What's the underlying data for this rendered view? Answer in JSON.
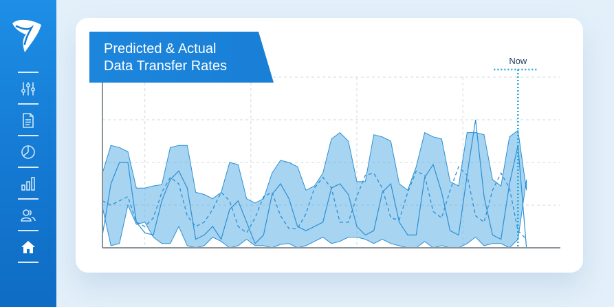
{
  "sidebar": {
    "items": [
      {
        "icon": "sliders-icon"
      },
      {
        "icon": "document-icon"
      },
      {
        "icon": "pie-chart-icon"
      },
      {
        "icon": "bar-chart-icon"
      },
      {
        "icon": "users-icon"
      },
      {
        "icon": "home-icon"
      }
    ]
  },
  "colors": {
    "sidebar": "#1479d2",
    "accent": "#1a7fd6",
    "area_fill": "#5fb0e6",
    "line": "#2a8fd4",
    "now_marker": "#1fa6d6",
    "background": "#e3f0fa"
  },
  "chart_data": {
    "type": "area",
    "title_lines": [
      "Predicted & Actual",
      "Data Transfer Rates"
    ],
    "now_label": "Now",
    "xlabel": "",
    "ylabel": "",
    "x_range": [
      0,
      108
    ],
    "y_range": [
      0,
      4
    ],
    "grid": true,
    "band_upper": [
      [
        0,
        1.75
      ],
      [
        2,
        2.4
      ],
      [
        4,
        2.35
      ],
      [
        6,
        2.25
      ],
      [
        8,
        1.4
      ],
      [
        10,
        1.4
      ],
      [
        12,
        1.45
      ],
      [
        14,
        1.48
      ],
      [
        16,
        2.35
      ],
      [
        18,
        2.4
      ],
      [
        20,
        2.4
      ],
      [
        22,
        1.3
      ],
      [
        24,
        1.25
      ],
      [
        26,
        1.15
      ],
      [
        28,
        1.3
      ],
      [
        30,
        2.0
      ],
      [
        32,
        1.95
      ],
      [
        34,
        1.15
      ],
      [
        36,
        1.05
      ],
      [
        38,
        1.15
      ],
      [
        40,
        1.75
      ],
      [
        42,
        2.05
      ],
      [
        44,
        2.0
      ],
      [
        46,
        1.9
      ],
      [
        48,
        1.35
      ],
      [
        50,
        1.45
      ],
      [
        52,
        1.75
      ],
      [
        54,
        2.55
      ],
      [
        56,
        2.7
      ],
      [
        58,
        2.5
      ],
      [
        60,
        1.55
      ],
      [
        62,
        1.55
      ],
      [
        64,
        2.65
      ],
      [
        66,
        2.6
      ],
      [
        68,
        2.5
      ],
      [
        70,
        1.5
      ],
      [
        72,
        1.35
      ],
      [
        74,
        1.9
      ],
      [
        76,
        2.7
      ],
      [
        78,
        2.6
      ],
      [
        80,
        2.55
      ],
      [
        82,
        1.55
      ],
      [
        84,
        1.45
      ],
      [
        86,
        2.7
      ],
      [
        88,
        2.7
      ],
      [
        90,
        2.65
      ],
      [
        92,
        1.6
      ],
      [
        94,
        1.45
      ],
      [
        96,
        2.6
      ],
      [
        98,
        2.75
      ],
      [
        100,
        1.35
      ]
    ],
    "band_lower": [
      [
        0,
        0.95
      ],
      [
        2,
        0.05
      ],
      [
        4,
        0.1
      ],
      [
        6,
        1.0
      ],
      [
        8,
        0.55
      ],
      [
        10,
        0.6
      ],
      [
        12,
        0.25
      ],
      [
        14,
        0.1
      ],
      [
        16,
        0.1
      ],
      [
        18,
        0.5
      ],
      [
        20,
        0.05
      ],
      [
        22,
        0.0
      ],
      [
        24,
        0.05
      ],
      [
        26,
        0.25
      ],
      [
        28,
        0.15
      ],
      [
        30,
        0.0
      ],
      [
        32,
        0.05
      ],
      [
        34,
        0.2
      ],
      [
        36,
        0.05
      ],
      [
        38,
        0.05
      ],
      [
        40,
        0.0
      ],
      [
        42,
        0.08
      ],
      [
        44,
        0.1
      ],
      [
        46,
        0.0
      ],
      [
        48,
        0.05
      ],
      [
        50,
        0.15
      ],
      [
        52,
        0.25
      ],
      [
        54,
        0.1
      ],
      [
        56,
        0.15
      ],
      [
        58,
        0.25
      ],
      [
        60,
        0.25
      ],
      [
        62,
        0.2
      ],
      [
        64,
        0.1
      ],
      [
        66,
        0.2
      ],
      [
        68,
        0.1
      ],
      [
        70,
        0.05
      ],
      [
        72,
        0.0
      ],
      [
        74,
        0.0
      ],
      [
        76,
        0.15
      ],
      [
        78,
        0.0
      ],
      [
        80,
        0.05
      ],
      [
        82,
        0.0
      ],
      [
        84,
        0.0
      ],
      [
        86,
        0.1
      ],
      [
        88,
        0.25
      ],
      [
        90,
        0.05
      ],
      [
        92,
        0.1
      ],
      [
        94,
        0.1
      ],
      [
        96,
        0.0
      ],
      [
        98,
        0.2
      ],
      [
        100,
        1.6
      ]
    ],
    "actual": [
      [
        0,
        0.3
      ],
      [
        2,
        1.5
      ],
      [
        4,
        2.0
      ],
      [
        6,
        2.0
      ],
      [
        8,
        0.6
      ],
      [
        10,
        0.35
      ],
      [
        12,
        0.3
      ],
      [
        14,
        1.1
      ],
      [
        16,
        1.6
      ],
      [
        18,
        1.8
      ],
      [
        20,
        1.4
      ],
      [
        22,
        0.2
      ],
      [
        24,
        0.3
      ],
      [
        26,
        0.5
      ],
      [
        28,
        0.2
      ],
      [
        30,
        0.9
      ],
      [
        32,
        1.1
      ],
      [
        34,
        0.6
      ],
      [
        36,
        0.1
      ],
      [
        38,
        0.3
      ],
      [
        40,
        1.25
      ],
      [
        42,
        1.5
      ],
      [
        44,
        1.15
      ],
      [
        46,
        0.5
      ],
      [
        48,
        0.4
      ],
      [
        50,
        0.5
      ],
      [
        52,
        0.6
      ],
      [
        54,
        1.4
      ],
      [
        56,
        1.5
      ],
      [
        58,
        1.25
      ],
      [
        60,
        0.5
      ],
      [
        62,
        0.3
      ],
      [
        64,
        0.4
      ],
      [
        66,
        1.3
      ],
      [
        68,
        1.5
      ],
      [
        70,
        0.6
      ],
      [
        72,
        0.3
      ],
      [
        74,
        0.3
      ],
      [
        76,
        1.65
      ],
      [
        78,
        1.95
      ],
      [
        80,
        1.3
      ],
      [
        82,
        0.4
      ],
      [
        84,
        0.3
      ],
      [
        86,
        1.7
      ],
      [
        88,
        3.0
      ],
      [
        90,
        1.2
      ],
      [
        92,
        0.3
      ],
      [
        94,
        0.2
      ],
      [
        96,
        1.5
      ],
      [
        98,
        2.4
      ],
      [
        100,
        0.0
      ]
    ],
    "predicted": [
      [
        0,
        1.1
      ],
      [
        2,
        1.0
      ],
      [
        4,
        1.1
      ],
      [
        6,
        1.2
      ],
      [
        8,
        0.6
      ],
      [
        10,
        0.5
      ],
      [
        12,
        0.7
      ],
      [
        14,
        1.3
      ],
      [
        16,
        1.65
      ],
      [
        18,
        1.5
      ],
      [
        20,
        0.75
      ],
      [
        22,
        0.5
      ],
      [
        24,
        0.6
      ],
      [
        26,
        0.9
      ],
      [
        28,
        1.3
      ],
      [
        30,
        1.1
      ],
      [
        32,
        0.5
      ],
      [
        34,
        0.35
      ],
      [
        36,
        0.7
      ],
      [
        38,
        1.2
      ],
      [
        40,
        1.3
      ],
      [
        42,
        0.75
      ],
      [
        44,
        0.45
      ],
      [
        46,
        0.45
      ],
      [
        48,
        0.8
      ],
      [
        50,
        1.4
      ],
      [
        52,
        1.65
      ],
      [
        54,
        1.4
      ],
      [
        56,
        0.6
      ],
      [
        58,
        0.6
      ],
      [
        60,
        1.2
      ],
      [
        62,
        1.7
      ],
      [
        64,
        1.75
      ],
      [
        66,
        1.4
      ],
      [
        68,
        0.7
      ],
      [
        70,
        0.65
      ],
      [
        72,
        1.3
      ],
      [
        74,
        1.8
      ],
      [
        76,
        1.7
      ],
      [
        78,
        0.85
      ],
      [
        80,
        0.7
      ],
      [
        82,
        1.35
      ],
      [
        84,
        1.9
      ],
      [
        86,
        1.7
      ],
      [
        88,
        0.75
      ],
      [
        90,
        0.6
      ],
      [
        92,
        1.35
      ],
      [
        94,
        1.75
      ],
      [
        96,
        1.4
      ],
      [
        98,
        0.4
      ],
      [
        100,
        0.2
      ]
    ],
    "now_x": 98
  }
}
